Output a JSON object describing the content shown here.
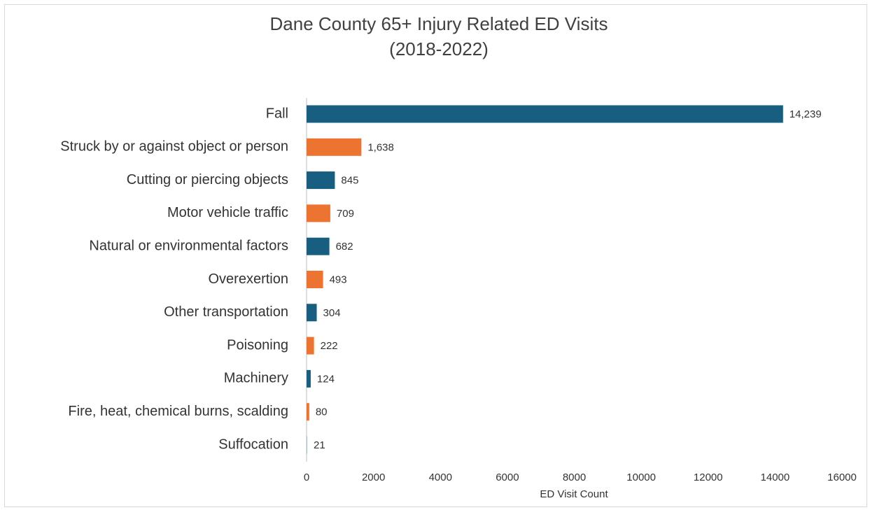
{
  "chart_data": {
    "type": "bar",
    "orientation": "horizontal",
    "title": "Dane County 65+ Injury Related ED Visits",
    "subtitle": "(2018-2022)",
    "x_label": "ED Visit Count",
    "categories": [
      "Fall",
      "Struck by or against object or person",
      "Cutting or piercing objects",
      "Motor vehicle traffic",
      "Natural or environmental factors",
      "Overexertion",
      "Other transportation",
      "Poisoning",
      "Machinery",
      "Fire, heat, chemical burns, scalding",
      "Suffocation"
    ],
    "values": [
      14239,
      1638,
      845,
      709,
      682,
      493,
      304,
      222,
      124,
      80,
      21
    ],
    "value_labels": [
      "14,239",
      "1,638",
      "845",
      "709",
      "682",
      "493",
      "304",
      "222",
      "124",
      "80",
      "21"
    ],
    "colors": [
      "#175e80",
      "#ed7331",
      "#175e80",
      "#ed7331",
      "#175e80",
      "#ed7331",
      "#175e80",
      "#ed7331",
      "#175e80",
      "#ed7331",
      "#a6bccb"
    ],
    "xlim": [
      0,
      16000
    ],
    "xticks": [
      0,
      2000,
      4000,
      6000,
      8000,
      10000,
      12000,
      14000,
      16000
    ],
    "grid": false
  }
}
